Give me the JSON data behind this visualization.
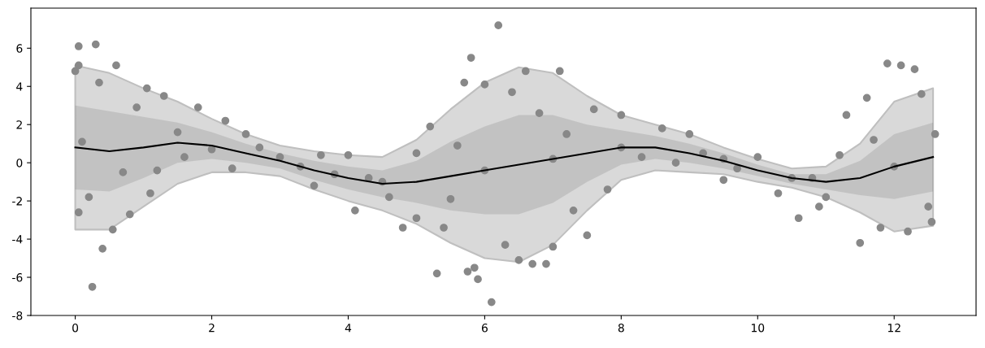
{
  "chart_data": {
    "type": "line",
    "xlim": [
      -0.65,
      13.2
    ],
    "ylim": [
      -8,
      8.1
    ],
    "xticks": [
      0,
      2,
      4,
      6,
      8,
      10,
      12
    ],
    "yticks": [
      -8,
      -6,
      -4,
      -2,
      0,
      2,
      4,
      6
    ],
    "grid": false,
    "series": [
      {
        "color": "#d9d9d9",
        "x": [
          0,
          0.5,
          1,
          1.5,
          2,
          2.5,
          3,
          3.5,
          4,
          4.5,
          5,
          5.5,
          6,
          6.5,
          7,
          7.5,
          8,
          8.5,
          9,
          9.5,
          10,
          10.5,
          11,
          11.5,
          12,
          12.57
        ],
        "values": [
          null,
          null,
          null,
          null,
          null,
          null,
          null,
          null,
          null,
          null,
          null,
          null,
          null,
          null,
          null,
          null,
          null,
          null,
          null,
          null,
          null,
          null,
          null,
          null,
          null,
          null
        ],
        "upper": [
          5.1,
          4.7,
          3.9,
          3.2,
          2.3,
          1.5,
          0.9,
          0.6,
          0.4,
          0.3,
          1.2,
          2.8,
          4.2,
          5.0,
          4.7,
          3.5,
          2.5,
          2.0,
          1.5,
          0.8,
          0.2,
          -0.3,
          -0.2,
          1.0,
          3.2,
          3.9
        ],
        "lower": [
          -3.5,
          -3.5,
          -2.3,
          -1.1,
          -0.5,
          -0.5,
          -0.7,
          -1.4,
          -2.0,
          -2.5,
          -3.2,
          -4.2,
          -5.0,
          -5.2,
          -4.3,
          -2.5,
          -0.9,
          -0.4,
          -0.5,
          -0.6,
          -1.0,
          -1.3,
          -1.8,
          -2.6,
          -3.6,
          -3.3
        ]
      },
      {
        "type": "scatter",
        "color": "#888888",
        "x": [
          0,
          0.05,
          0.05,
          0.3,
          0.25,
          0.4,
          0.35,
          0.05,
          0.6,
          0.55,
          0.2,
          0.8,
          0.9,
          1.05,
          1.3,
          1.1,
          1.8,
          1.5,
          2.0,
          2.3,
          2.5,
          2.7,
          3.0,
          3.3,
          3.5,
          3.8,
          4.0,
          4.1,
          4.3,
          4.6,
          4.8,
          5.0,
          5.2,
          5.3,
          5.4,
          5.6,
          5.7,
          5.8,
          5.9,
          5.85,
          5.75,
          6.0,
          6.1,
          6.2,
          6.3,
          6.4,
          6.5,
          6.6,
          6.7,
          6.9,
          7.0,
          7.1,
          7.2,
          7.5,
          7.6,
          7.8,
          8.0,
          8.3,
          8.6,
          8.8,
          9.0,
          9.2,
          9.5,
          9.7,
          10.0,
          10.3,
          10.6,
          10.8,
          11.0,
          11.2,
          11.3,
          11.5,
          11.6,
          11.8,
          11.9,
          12.1,
          12.3,
          12.2,
          12.4,
          12.55,
          12.6,
          12.5,
          0.1,
          0.7,
          1.6,
          3.6,
          4.5,
          6.0,
          7.0,
          8.0,
          9.5,
          10.5,
          12.0,
          2.2,
          1.2,
          5.0,
          6.8,
          5.5,
          7.3,
          10.9,
          11.7
        ],
        "values": [
          4.8,
          6.1,
          5.1,
          6.2,
          -6.5,
          -4.5,
          4.2,
          -2.6,
          5.1,
          -3.5,
          -1.8,
          -2.7,
          2.9,
          3.9,
          3.5,
          -1.6,
          2.9,
          1.6,
          0.7,
          -0.3,
          1.5,
          0.8,
          0.3,
          -0.2,
          -1.2,
          -0.6,
          0.4,
          -2.5,
          -0.8,
          -1.8,
          -3.4,
          -2.9,
          1.9,
          -5.8,
          -3.4,
          0.9,
          4.2,
          5.5,
          -6.1,
          -5.5,
          -5.7,
          4.1,
          -7.3,
          7.2,
          -4.3,
          3.7,
          -5.1,
          4.8,
          -5.3,
          -5.3,
          -4.4,
          4.8,
          1.5,
          -3.8,
          2.8,
          -1.4,
          2.5,
          0.3,
          1.8,
          0.0,
          1.5,
          0.5,
          -0.9,
          -0.3,
          0.3,
          -1.6,
          -2.9,
          -0.8,
          -1.8,
          0.4,
          2.5,
          -4.2,
          3.4,
          -3.4,
          5.2,
          5.1,
          4.9,
          -3.6,
          3.6,
          -3.1,
          1.5,
          -2.3,
          1.1,
          -0.5,
          0.3,
          0.4,
          -1.0,
          -0.4,
          0.2,
          0.8,
          0.2,
          -0.8,
          -0.2,
          2.2,
          -0.4,
          0.5,
          2.6,
          -1.9,
          -2.5,
          -2.3,
          1.2
        ]
      },
      {
        "color": "#000000",
        "x": [
          0,
          0.5,
          1,
          1.5,
          2,
          2.5,
          3,
          3.5,
          4,
          4.5,
          5,
          5.5,
          6,
          6.5,
          7,
          7.5,
          8,
          8.5,
          9,
          9.5,
          10,
          10.5,
          11,
          11.5,
          12,
          12.57
        ],
        "values": [
          0.8,
          0.6,
          0.8,
          1.05,
          0.9,
          0.5,
          0.1,
          -0.4,
          -0.8,
          -1.1,
          -1.0,
          -0.7,
          -0.4,
          -0.1,
          0.2,
          0.5,
          0.8,
          0.8,
          0.5,
          0.1,
          -0.4,
          -0.8,
          -1.0,
          -0.8,
          -0.2,
          0.3
        ],
        "upper": [
          3.0,
          2.7,
          2.4,
          2.1,
          1.6,
          1.0,
          0.5,
          0.1,
          -0.2,
          -0.4,
          0.1,
          1.1,
          1.9,
          2.5,
          2.5,
          2.0,
          1.7,
          1.4,
          1.0,
          0.5,
          -0.1,
          -0.6,
          -0.6,
          0.1,
          1.5,
          2.1
        ],
        "lower": [
          -1.4,
          -1.5,
          -0.8,
          0.0,
          0.2,
          0.0,
          -0.3,
          -0.9,
          -1.4,
          -1.8,
          -2.1,
          -2.5,
          -2.7,
          -2.7,
          -2.1,
          -1.0,
          -0.1,
          0.2,
          0.0,
          -0.3,
          -0.7,
          -1.1,
          -1.4,
          -1.7,
          -1.9,
          -1.5
        ]
      }
    ]
  }
}
